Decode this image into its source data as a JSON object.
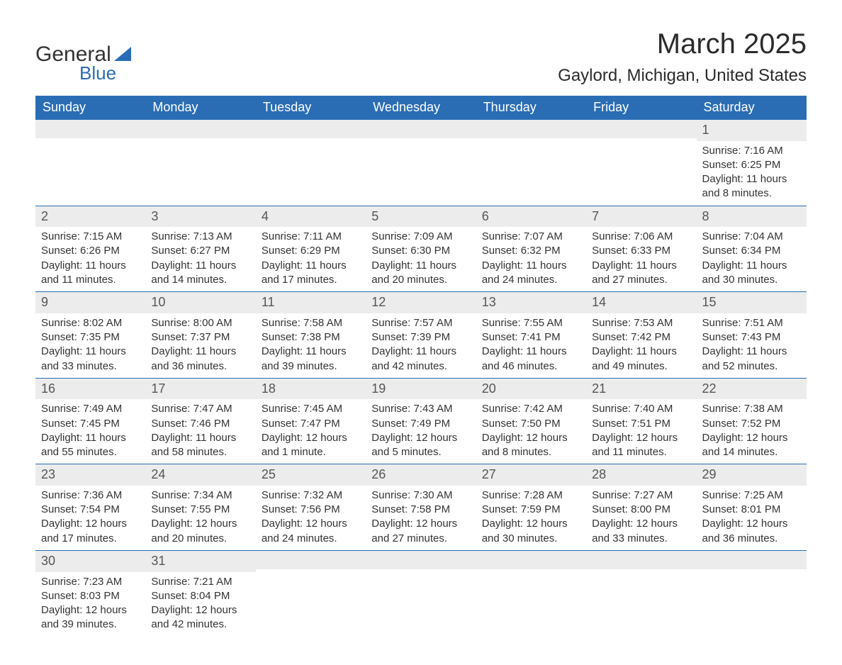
{
  "logo": {
    "general": "General",
    "blue": "Blue"
  },
  "title": "March 2025",
  "location": "Gaylord, Michigan, United States",
  "colors": {
    "header_bg": "#2a6db5",
    "header_fg": "#ffffff",
    "daynum_bg": "#ececec",
    "daynum_fg": "#555555",
    "text": "#333333",
    "rule": "#2a6db5"
  },
  "fonts": {
    "title_pt": 40,
    "location_pt": 24,
    "dayhead_pt": 18,
    "body_pt": 15
  },
  "weekdays": [
    "Sunday",
    "Monday",
    "Tuesday",
    "Wednesday",
    "Thursday",
    "Friday",
    "Saturday"
  ],
  "labels": {
    "sunrise": "Sunrise:",
    "sunset": "Sunset:",
    "daylight": "Daylight:"
  },
  "weeks": [
    [
      {
        "empty": true
      },
      {
        "empty": true
      },
      {
        "empty": true
      },
      {
        "empty": true
      },
      {
        "empty": true
      },
      {
        "empty": true
      },
      {
        "date": "1",
        "sunrise": "7:16 AM",
        "sunset": "6:25 PM",
        "daylight": "11 hours and 8 minutes."
      }
    ],
    [
      {
        "date": "2",
        "sunrise": "7:15 AM",
        "sunset": "6:26 PM",
        "daylight": "11 hours and 11 minutes."
      },
      {
        "date": "3",
        "sunrise": "7:13 AM",
        "sunset": "6:27 PM",
        "daylight": "11 hours and 14 minutes."
      },
      {
        "date": "4",
        "sunrise": "7:11 AM",
        "sunset": "6:29 PM",
        "daylight": "11 hours and 17 minutes."
      },
      {
        "date": "5",
        "sunrise": "7:09 AM",
        "sunset": "6:30 PM",
        "daylight": "11 hours and 20 minutes."
      },
      {
        "date": "6",
        "sunrise": "7:07 AM",
        "sunset": "6:32 PM",
        "daylight": "11 hours and 24 minutes."
      },
      {
        "date": "7",
        "sunrise": "7:06 AM",
        "sunset": "6:33 PM",
        "daylight": "11 hours and 27 minutes."
      },
      {
        "date": "8",
        "sunrise": "7:04 AM",
        "sunset": "6:34 PM",
        "daylight": "11 hours and 30 minutes."
      }
    ],
    [
      {
        "date": "9",
        "sunrise": "8:02 AM",
        "sunset": "7:35 PM",
        "daylight": "11 hours and 33 minutes."
      },
      {
        "date": "10",
        "sunrise": "8:00 AM",
        "sunset": "7:37 PM",
        "daylight": "11 hours and 36 minutes."
      },
      {
        "date": "11",
        "sunrise": "7:58 AM",
        "sunset": "7:38 PM",
        "daylight": "11 hours and 39 minutes."
      },
      {
        "date": "12",
        "sunrise": "7:57 AM",
        "sunset": "7:39 PM",
        "daylight": "11 hours and 42 minutes."
      },
      {
        "date": "13",
        "sunrise": "7:55 AM",
        "sunset": "7:41 PM",
        "daylight": "11 hours and 46 minutes."
      },
      {
        "date": "14",
        "sunrise": "7:53 AM",
        "sunset": "7:42 PM",
        "daylight": "11 hours and 49 minutes."
      },
      {
        "date": "15",
        "sunrise": "7:51 AM",
        "sunset": "7:43 PM",
        "daylight": "11 hours and 52 minutes."
      }
    ],
    [
      {
        "date": "16",
        "sunrise": "7:49 AM",
        "sunset": "7:45 PM",
        "daylight": "11 hours and 55 minutes."
      },
      {
        "date": "17",
        "sunrise": "7:47 AM",
        "sunset": "7:46 PM",
        "daylight": "11 hours and 58 minutes."
      },
      {
        "date": "18",
        "sunrise": "7:45 AM",
        "sunset": "7:47 PM",
        "daylight": "12 hours and 1 minute."
      },
      {
        "date": "19",
        "sunrise": "7:43 AM",
        "sunset": "7:49 PM",
        "daylight": "12 hours and 5 minutes."
      },
      {
        "date": "20",
        "sunrise": "7:42 AM",
        "sunset": "7:50 PM",
        "daylight": "12 hours and 8 minutes."
      },
      {
        "date": "21",
        "sunrise": "7:40 AM",
        "sunset": "7:51 PM",
        "daylight": "12 hours and 11 minutes."
      },
      {
        "date": "22",
        "sunrise": "7:38 AM",
        "sunset": "7:52 PM",
        "daylight": "12 hours and 14 minutes."
      }
    ],
    [
      {
        "date": "23",
        "sunrise": "7:36 AM",
        "sunset": "7:54 PM",
        "daylight": "12 hours and 17 minutes."
      },
      {
        "date": "24",
        "sunrise": "7:34 AM",
        "sunset": "7:55 PM",
        "daylight": "12 hours and 20 minutes."
      },
      {
        "date": "25",
        "sunrise": "7:32 AM",
        "sunset": "7:56 PM",
        "daylight": "12 hours and 24 minutes."
      },
      {
        "date": "26",
        "sunrise": "7:30 AM",
        "sunset": "7:58 PM",
        "daylight": "12 hours and 27 minutes."
      },
      {
        "date": "27",
        "sunrise": "7:28 AM",
        "sunset": "7:59 PM",
        "daylight": "12 hours and 30 minutes."
      },
      {
        "date": "28",
        "sunrise": "7:27 AM",
        "sunset": "8:00 PM",
        "daylight": "12 hours and 33 minutes."
      },
      {
        "date": "29",
        "sunrise": "7:25 AM",
        "sunset": "8:01 PM",
        "daylight": "12 hours and 36 minutes."
      }
    ],
    [
      {
        "date": "30",
        "sunrise": "7:23 AM",
        "sunset": "8:03 PM",
        "daylight": "12 hours and 39 minutes."
      },
      {
        "date": "31",
        "sunrise": "7:21 AM",
        "sunset": "8:04 PM",
        "daylight": "12 hours and 42 minutes."
      },
      {
        "empty": true
      },
      {
        "empty": true
      },
      {
        "empty": true
      },
      {
        "empty": true
      },
      {
        "empty": true
      }
    ]
  ]
}
